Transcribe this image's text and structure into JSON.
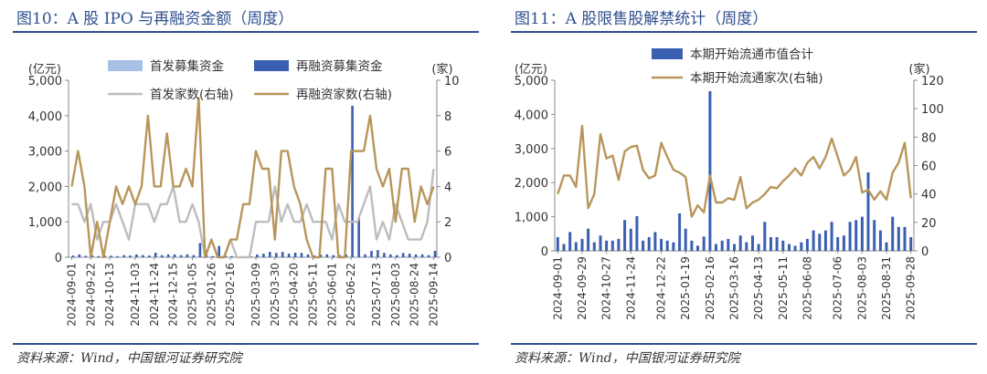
{
  "source": "资料来源：Wind，中国银河证券研究院",
  "charts": [
    {
      "title": "图10：A 股 IPO 与再融资金额（周度）",
      "left_axis_label": "(亿元)",
      "right_axis_label": "(家)",
      "legend": [
        "首发募集资金",
        "再融资募集资金",
        "首发家数(右轴)",
        "再融资家数(右轴)"
      ],
      "colors": {
        "ipo_bar": "#a8c0e6",
        "refi_bar": "#3a5fb0",
        "ipo_line": "#bdbdbd",
        "refi_line": "#b8965a"
      }
    },
    {
      "title": "图11：A 股限售股解禁统计（周度）",
      "left_axis_label": "(亿元)",
      "right_axis_label": "(家)",
      "legend": [
        "本期开始流通市值合计",
        "本期开始流通家次(右轴)"
      ],
      "colors": {
        "bar": "#3a5fb0",
        "line": "#b8965a"
      }
    }
  ],
  "chart_data": [
    {
      "type": "bar+line",
      "title": "图10：A 股 IPO 与再融资金额（周度）",
      "ylabel": "(亿元)",
      "y2label": "(家)",
      "ylim": [
        0,
        5000
      ],
      "yticks": [
        0,
        1000,
        2000,
        3000,
        4000,
        5000
      ],
      "y2lim": [
        0,
        10
      ],
      "y2ticks": [
        0,
        2,
        4,
        6,
        8,
        10
      ],
      "x_ticks": [
        "2024-09-01",
        "2024-09-22",
        "2024-10-13",
        "2024-11-03",
        "2024-11-24",
        "2024-12-15",
        "2025-01-05",
        "2025-01-26",
        "2025-02-16",
        "2025-03-09",
        "2025-03-30",
        "2025-04-20",
        "2025-05-11",
        "2025-06-01",
        "2025-06-22",
        "2025-07-13",
        "2025-08-03",
        "2025-08-24",
        "2025-09-14"
      ],
      "series": [
        {
          "name": "首发募集资金",
          "type": "bar",
          "axis": "left",
          "values": [
            20,
            20,
            15,
            10,
            10,
            20,
            10,
            15,
            10,
            20,
            15,
            10,
            10,
            20,
            15,
            20,
            25,
            15,
            30,
            20,
            20,
            25,
            25,
            10,
            15,
            20,
            0,
            0,
            0,
            0,
            0,
            20,
            25,
            20,
            20,
            25,
            20,
            20,
            15,
            20,
            10,
            10,
            10,
            10,
            20,
            10,
            20,
            30,
            20,
            15,
            15,
            20,
            20,
            30,
            20,
            20,
            20,
            20
          ]
        },
        {
          "name": "再融资募集资金",
          "type": "bar",
          "axis": "left",
          "values": [
            50,
            80,
            40,
            60,
            30,
            40,
            40,
            30,
            60,
            50,
            80,
            60,
            50,
            130,
            60,
            80,
            80,
            60,
            80,
            60,
            400,
            200,
            30,
            320,
            40,
            30,
            20,
            20,
            20,
            80,
            100,
            150,
            120,
            150,
            100,
            130,
            120,
            80,
            50,
            80,
            80,
            60,
            60,
            80,
            4280,
            1120,
            80,
            180,
            200,
            120,
            80,
            60,
            120,
            100,
            80,
            80,
            60,
            180
          ]
        },
        {
          "name": "首发家数(右轴)",
          "type": "line",
          "axis": "right",
          "values": [
            3,
            3,
            2,
            3,
            1,
            2,
            2,
            3,
            2,
            1,
            3,
            3,
            3,
            2,
            3,
            3,
            4,
            2,
            2,
            3,
            2,
            0,
            1,
            0,
            0,
            1,
            0,
            0,
            0,
            2,
            2,
            2,
            4,
            2,
            3,
            2,
            2,
            3,
            2,
            2,
            2,
            1,
            3,
            2,
            2,
            2,
            3,
            4,
            1,
            2,
            1,
            3,
            2,
            1,
            1,
            1,
            2,
            5
          ]
        },
        {
          "name": "再融资家数(右轴)",
          "type": "line",
          "axis": "right",
          "values": [
            4,
            6,
            4,
            0,
            2,
            0,
            2,
            4,
            3,
            4,
            3,
            4,
            8,
            4,
            4,
            7,
            4,
            4,
            5,
            4,
            9,
            0,
            1,
            0,
            0,
            1,
            1,
            3,
            3,
            6,
            5,
            5,
            1,
            6,
            6,
            4,
            3,
            1,
            0,
            0,
            5,
            5,
            0,
            0,
            6,
            6,
            6,
            8,
            5,
            4,
            5,
            2,
            5,
            5,
            2,
            4,
            3,
            4
          ]
        }
      ]
    },
    {
      "type": "bar+line",
      "title": "图11：A 股限售股解禁统计（周度）",
      "ylabel": "(亿元)",
      "y2label": "(家)",
      "ylim": [
        0,
        5000
      ],
      "yticks": [
        0,
        1000,
        2000,
        3000,
        4000,
        5000
      ],
      "y2lim": [
        0,
        120
      ],
      "y2ticks": [
        0,
        20,
        40,
        60,
        80,
        100,
        120
      ],
      "x_ticks": [
        "2024-09-01",
        "2024-09-29",
        "2024-10-27",
        "2024-11-24",
        "2024-12-22",
        "2025-01-19",
        "2025-02-16",
        "2025-03-16",
        "2025-04-13",
        "2025-05-11",
        "2025-06-08",
        "2025-07-06",
        "2025-08-03",
        "2025-08-31",
        "2025-09-28"
      ],
      "series": [
        {
          "name": "本期开始流通市值合计",
          "type": "bar",
          "axis": "left",
          "values": [
            400,
            200,
            550,
            250,
            350,
            650,
            250,
            450,
            300,
            300,
            350,
            900,
            650,
            1020,
            300,
            400,
            550,
            350,
            300,
            250,
            1100,
            650,
            300,
            150,
            420,
            4680,
            200,
            300,
            350,
            200,
            450,
            250,
            450,
            200,
            850,
            400,
            400,
            300,
            200,
            150,
            250,
            350,
            600,
            500,
            600,
            850,
            400,
            450,
            850,
            900,
            1000,
            2300,
            900,
            600,
            250,
            1000,
            700,
            700,
            400
          ]
        },
        {
          "name": "本期开始流通家次(右轴)",
          "type": "line",
          "axis": "right",
          "values": [
            40,
            53,
            53,
            45,
            88,
            30,
            40,
            82,
            65,
            67,
            50,
            70,
            73,
            74,
            57,
            51,
            53,
            76,
            66,
            57,
            55,
            52,
            24,
            32,
            27,
            53,
            34,
            34,
            37,
            36,
            52,
            30,
            34,
            36,
            40,
            45,
            44,
            49,
            53,
            58,
            53,
            62,
            66,
            58,
            66,
            79,
            66,
            53,
            57,
            66,
            41,
            43,
            36,
            42,
            36,
            55,
            62,
            76,
            37
          ]
        }
      ]
    }
  ]
}
